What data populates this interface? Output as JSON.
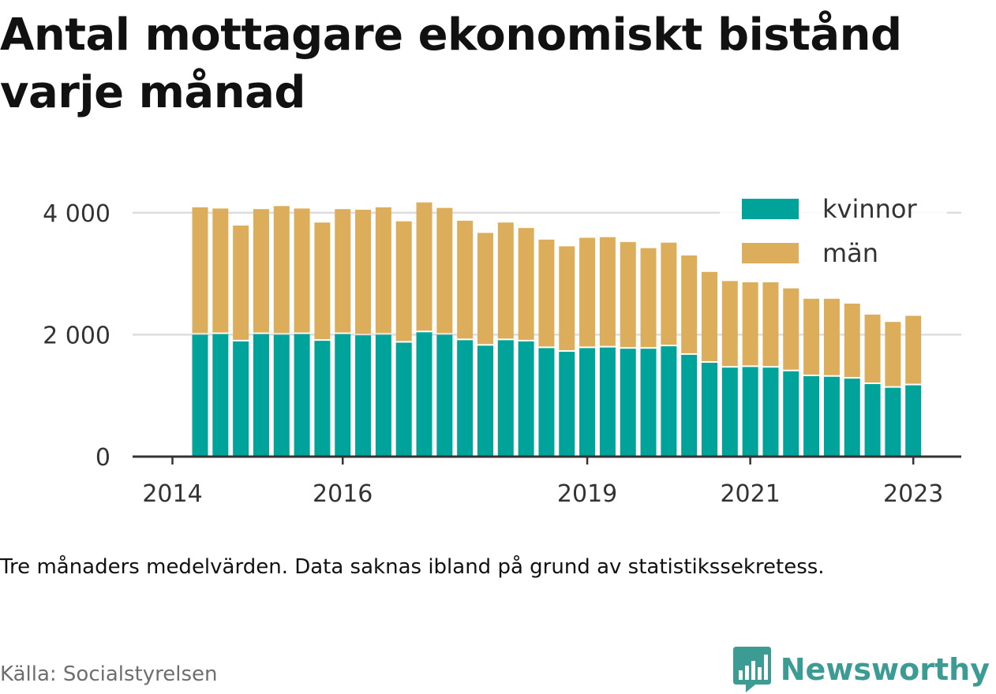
{
  "title": "Antal mottagare ekonomiskt bistånd varje månad",
  "note": "Tre månaders medelvärden. Data saknas ibland på grund av statistikssekretess.",
  "source": "Källa: Socialstyrelsen",
  "brand": {
    "name": "Newsworthy",
    "icon": "bar-chart-speech-bubble-icon",
    "color": "#3c9b93"
  },
  "chart_data": {
    "type": "bar",
    "stacked": true,
    "categories": [
      "2014-Q2",
      "2014-Q3",
      "2014-Q4",
      "2015-Q1",
      "2015-Q2",
      "2015-Q3",
      "2015-Q4",
      "2016-Q1",
      "2016-Q2",
      "2016-Q3",
      "2016-Q4",
      "2017-Q1",
      "2017-Q2",
      "2017-Q3",
      "2017-Q4",
      "2018-Q1",
      "2018-Q2",
      "2018-Q3",
      "2018-Q4",
      "2019-Q1",
      "2019-Q2",
      "2019-Q3",
      "2019-Q4",
      "2020-Q1",
      "2020-Q2",
      "2020-Q3",
      "2020-Q4",
      "2021-Q1",
      "2021-Q2",
      "2021-Q3",
      "2021-Q4",
      "2022-Q1",
      "2022-Q2",
      "2022-Q3",
      "2022-Q4",
      "2023-Q1"
    ],
    "series": [
      {
        "name": "kvinnor",
        "color": "#00a39a",
        "values": [
          2000,
          2010,
          1890,
          2010,
          2000,
          2010,
          1900,
          2010,
          1990,
          2000,
          1870,
          2040,
          2000,
          1910,
          1820,
          1910,
          1890,
          1780,
          1720,
          1780,
          1790,
          1770,
          1770,
          1810,
          1670,
          1540,
          1460,
          1470,
          1460,
          1400,
          1320,
          1310,
          1280,
          1190,
          1130,
          1170
        ]
      },
      {
        "name": "män",
        "color": "#dcae5c",
        "values": [
          2090,
          2060,
          1900,
          2050,
          2110,
          2060,
          1940,
          2050,
          2060,
          2090,
          1990,
          2130,
          2080,
          1960,
          1850,
          1930,
          1860,
          1780,
          1730,
          1810,
          1810,
          1750,
          1650,
          1700,
          1630,
          1490,
          1420,
          1390,
          1400,
          1360,
          1270,
          1280,
          1230,
          1140,
          1080,
          1140
        ]
      }
    ],
    "x_tick_labels": [
      {
        "category": "2014-Q2",
        "label": "2014",
        "offset": -1
      },
      {
        "category": "2016-Q1",
        "label": "2016",
        "offset": 0
      },
      {
        "category": "2019-Q1",
        "label": "2019",
        "offset": 0
      },
      {
        "category": "2021-Q1",
        "label": "2021",
        "offset": 0
      },
      {
        "category": "2023-Q1",
        "label": "2023",
        "offset": 0
      }
    ],
    "y_ticks": [
      0,
      2000,
      4000
    ],
    "y_tick_labels": [
      "0",
      "2 000",
      "4 000"
    ],
    "ylim": [
      0,
      4200
    ],
    "grid": true,
    "legend_position": "top-right"
  }
}
